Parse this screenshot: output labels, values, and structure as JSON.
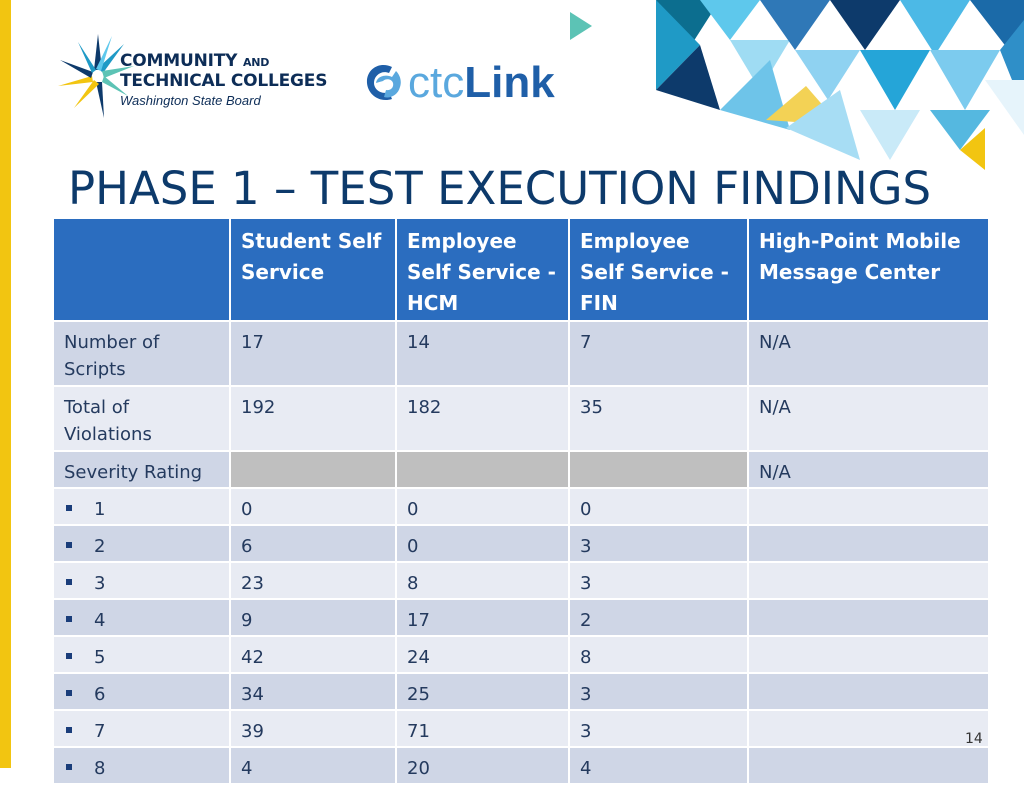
{
  "logo": {
    "org_line1": "COMMUNITY",
    "org_and": "AND",
    "org_line2": "TECHNICAL COLLEGES",
    "org_line3": "Washington State Board",
    "product_a": "ctc",
    "product_b": "Link"
  },
  "slide": {
    "title": "PHASE 1 – TEST EXECUTION FINDINGS",
    "page_number": "14"
  },
  "table": {
    "headers": [
      "",
      "Student Self Service",
      "Employee Self Service - HCM",
      "Employee Self Service - FIN",
      "High-Point Mobile Message Center"
    ],
    "rows": [
      {
        "label": "Number of Scripts",
        "values": [
          "17",
          "14",
          "7",
          "N/A"
        ]
      },
      {
        "label": "Total of Violations",
        "values": [
          "192",
          "182",
          "35",
          "N/A"
        ]
      },
      {
        "label": "Severity Rating",
        "values": [
          "",
          "",
          "",
          "N/A"
        ]
      },
      {
        "label": "1",
        "values": [
          "0",
          "0",
          "0",
          ""
        ]
      },
      {
        "label": "2",
        "values": [
          "6",
          "0",
          "3",
          ""
        ]
      },
      {
        "label": "3",
        "values": [
          "23",
          "8",
          "3",
          ""
        ]
      },
      {
        "label": "4",
        "values": [
          "9",
          "17",
          "2",
          ""
        ]
      },
      {
        "label": "5",
        "values": [
          "42",
          "24",
          "8",
          ""
        ]
      },
      {
        "label": "6",
        "values": [
          "34",
          "25",
          "3",
          ""
        ]
      },
      {
        "label": "7",
        "values": [
          "39",
          "71",
          "3",
          ""
        ]
      },
      {
        "label": "8",
        "values": [
          "4",
          "20",
          "4",
          ""
        ]
      }
    ]
  },
  "colors": {
    "header_blue": "#2b6dbf",
    "row_dark": "#cfd6e6",
    "row_light": "#e8ebf3",
    "title": "#0d3a6b",
    "accent_yellow": "#f2c511"
  }
}
